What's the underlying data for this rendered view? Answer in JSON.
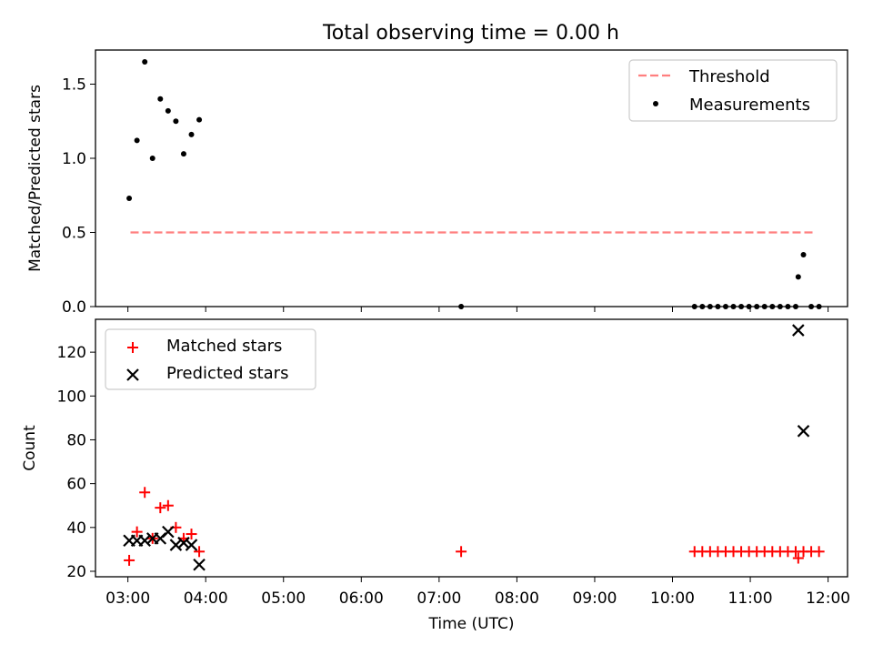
{
  "figure_title": "Total observing time = 0.00 h",
  "chart_data": [
    {
      "type": "scatter",
      "ylabel": "Matched/Predicted stars",
      "xlabel": "",
      "ylim": [
        0,
        1.73
      ],
      "yticks": [
        0.0,
        0.5,
        1.0,
        1.5
      ],
      "ytick_labels": [
        "0.0",
        "0.5",
        "1.0",
        "1.5"
      ],
      "xlim": [
        "02:35",
        "12:15"
      ],
      "xticks": [
        "03:00",
        "04:00",
        "05:00",
        "06:00",
        "07:00",
        "08:00",
        "09:00",
        "10:00",
        "11:00",
        "12:00"
      ],
      "legend_position": "top-right",
      "threshold": {
        "name": "Threshold",
        "color": "#ff7f7f",
        "value": 0.5,
        "x_range": [
          "03:02",
          "11:50"
        ]
      },
      "series": [
        {
          "name": "Measurements",
          "color": "#000000",
          "points": [
            [
              "03:01",
              0.73
            ],
            [
              "03:07",
              1.12
            ],
            [
              "03:13",
              1.65
            ],
            [
              "03:19",
              1.0
            ],
            [
              "03:25",
              1.4
            ],
            [
              "03:31",
              1.32
            ],
            [
              "03:37",
              1.25
            ],
            [
              "03:43",
              1.03
            ],
            [
              "03:49",
              1.16
            ],
            [
              "03:55",
              1.26
            ],
            [
              "07:17",
              0.0
            ],
            [
              "10:17",
              0.0
            ],
            [
              "10:23",
              0.0
            ],
            [
              "10:29",
              0.0
            ],
            [
              "10:35",
              0.0
            ],
            [
              "10:41",
              0.0
            ],
            [
              "10:47",
              0.0
            ],
            [
              "10:53",
              0.0
            ],
            [
              "10:59",
              0.0
            ],
            [
              "11:05",
              0.0
            ],
            [
              "11:11",
              0.0
            ],
            [
              "11:17",
              0.0
            ],
            [
              "11:23",
              0.0
            ],
            [
              "11:29",
              0.0
            ],
            [
              "11:35",
              0.0
            ],
            [
              "11:37",
              0.2
            ],
            [
              "11:41",
              0.35
            ],
            [
              "11:47",
              0.0
            ],
            [
              "11:53",
              0.0
            ]
          ]
        }
      ]
    },
    {
      "type": "scatter",
      "ylabel": "Count",
      "xlabel": "Time (UTC)",
      "ylim": [
        17.5,
        135
      ],
      "yticks": [
        20,
        40,
        60,
        80,
        100,
        120
      ],
      "ytick_labels": [
        "20",
        "40",
        "60",
        "80",
        "100",
        "120"
      ],
      "xlim": [
        "02:35",
        "12:15"
      ],
      "xticks": [
        "03:00",
        "04:00",
        "05:00",
        "06:00",
        "07:00",
        "08:00",
        "09:00",
        "10:00",
        "11:00",
        "12:00"
      ],
      "xtick_labels": [
        "03:00",
        "04:00",
        "05:00",
        "06:00",
        "07:00",
        "08:00",
        "09:00",
        "10:00",
        "11:00",
        "12:00"
      ],
      "legend_position": "top-left",
      "series": [
        {
          "name": "Matched stars",
          "color": "#ff0000",
          "marker": "plus",
          "points": [
            [
              "03:01",
              25
            ],
            [
              "03:07",
              38
            ],
            [
              "03:13",
              56
            ],
            [
              "03:19",
              35
            ],
            [
              "03:25",
              49
            ],
            [
              "03:31",
              50
            ],
            [
              "03:37",
              40
            ],
            [
              "03:43",
              35
            ],
            [
              "03:49",
              37
            ],
            [
              "03:55",
              29
            ],
            [
              "07:17",
              29
            ],
            [
              "10:17",
              29
            ],
            [
              "10:23",
              29
            ],
            [
              "10:29",
              29
            ],
            [
              "10:35",
              29
            ],
            [
              "10:41",
              29
            ],
            [
              "10:47",
              29
            ],
            [
              "10:53",
              29
            ],
            [
              "10:59",
              29
            ],
            [
              "11:05",
              29
            ],
            [
              "11:11",
              29
            ],
            [
              "11:17",
              29
            ],
            [
              "11:23",
              29
            ],
            [
              "11:29",
              29
            ],
            [
              "11:35",
              29
            ],
            [
              "11:37",
              26
            ],
            [
              "11:41",
              29
            ],
            [
              "11:47",
              29
            ],
            [
              "11:53",
              29
            ]
          ]
        },
        {
          "name": "Predicted stars",
          "color": "#000000",
          "marker": "x",
          "points": [
            [
              "03:01",
              34
            ],
            [
              "03:07",
              34
            ],
            [
              "03:13",
              34
            ],
            [
              "03:19",
              35
            ],
            [
              "03:25",
              35
            ],
            [
              "03:31",
              38
            ],
            [
              "03:37",
              32
            ],
            [
              "03:43",
              33
            ],
            [
              "03:49",
              32
            ],
            [
              "03:55",
              23
            ],
            [
              "11:37",
              130
            ],
            [
              "11:41",
              84
            ]
          ]
        }
      ]
    }
  ]
}
